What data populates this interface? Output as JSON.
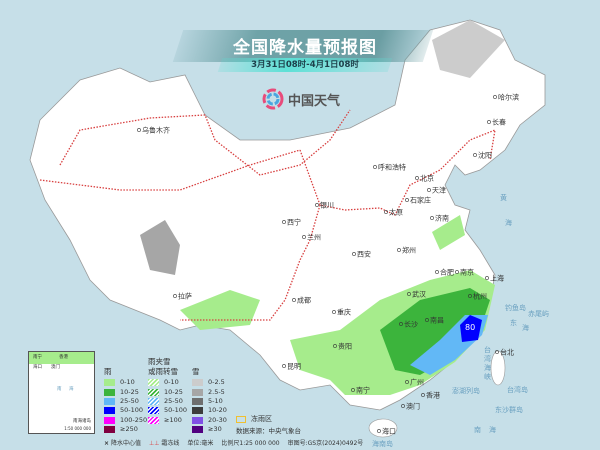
{
  "header": {
    "title": "全国降水量预报图",
    "subtitle": "3月31日08时-4月1日08时"
  },
  "logo": {
    "text": "中国天气"
  },
  "cities": [
    "哈尔滨",
    "长春",
    "沈阳",
    "乌鲁木齐",
    "呼和浩特",
    "北京",
    "天津",
    "石家庄",
    "太原",
    "银川",
    "济南",
    "西宁",
    "兰州",
    "郑州",
    "西安",
    "合肥",
    "南京",
    "上海",
    "武汉",
    "杭州",
    "拉萨",
    "成都",
    "重庆",
    "长沙",
    "南昌",
    "台北",
    "贵阳",
    "昆明",
    "南宁",
    "广州",
    "香港",
    "澳门",
    "海口"
  ],
  "seas": [
    "黄",
    "海",
    "东",
    "海",
    "台湾岛",
    "澎湖列岛",
    "东沙群岛",
    "南",
    "海",
    "海南岛",
    "钓鱼岛",
    "赤尾屿",
    "台",
    "湾",
    "海",
    "峡"
  ],
  "max_value": "80",
  "legend": {
    "rain": {
      "title": "雨",
      "items": [
        {
          "label": "0-10",
          "color": "#a6ec8c"
        },
        {
          "label": "10-25",
          "color": "#3cb43c"
        },
        {
          "label": "25-50",
          "color": "#62b8f6"
        },
        {
          "label": "50-100",
          "color": "#0000fe"
        },
        {
          "label": "100-250",
          "color": "#fe00fe"
        },
        {
          "label": "≥250",
          "color": "#800040"
        }
      ]
    },
    "sleet": {
      "title1": "雨夹雪",
      "title2": "或雨转雪",
      "items": [
        {
          "label": "0-10",
          "color": "#a6ec8c"
        },
        {
          "label": "10-25",
          "color": "#3cb43c"
        },
        {
          "label": "25-50",
          "color": "#62b8f6"
        },
        {
          "label": "50-100",
          "color": "#0000fe"
        },
        {
          "label": "≥100",
          "color": "#fe00fe"
        }
      ]
    },
    "snow": {
      "title": "雪",
      "items": [
        {
          "label": "0-2.5",
          "color": "#cccccc"
        },
        {
          "label": "2.5-5",
          "color": "#a6a6a6"
        },
        {
          "label": "5-10",
          "color": "#6e6e6e"
        },
        {
          "label": "10-20",
          "color": "#3c3c3c"
        },
        {
          "label": "20-30",
          "color": "#8050e6"
        },
        {
          "label": "≥30",
          "color": "#500080"
        }
      ]
    },
    "freezing_rain": {
      "label": "冻雨区",
      "color": "#f0c030"
    },
    "source": "数据来源：中央气象台"
  },
  "footer": {
    "center_mark": "×",
    "center_label": "降水中心值",
    "frost_label": "霜冻线",
    "unit": "单位:毫米",
    "scale": "比例尺1:25 000 000",
    "approval": "审图号:GS京(2024)0492号"
  },
  "inset": {
    "title": "南海诸岛",
    "scale": "1:50 000 000",
    "labels": [
      "南宁",
      "海口",
      "香港",
      "澳门",
      "南",
      "海"
    ]
  }
}
